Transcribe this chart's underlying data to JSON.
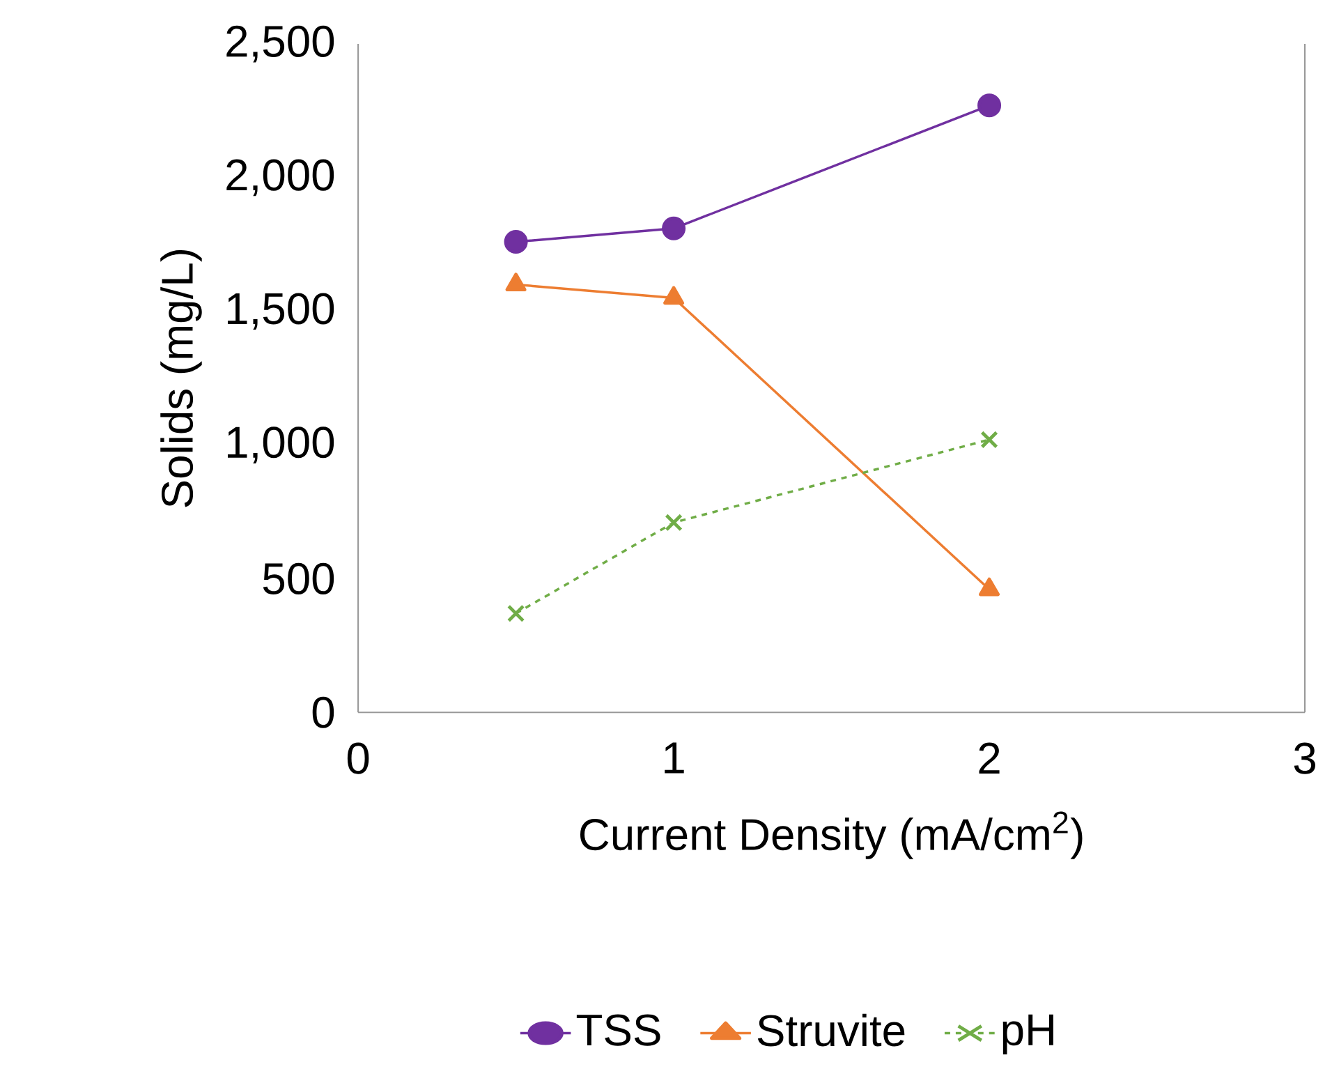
{
  "chart_data": {
    "type": "line",
    "xlabel": "Current Density (mA/cm$^{2}$)",
    "ylabel": "Solids (mg/L)",
    "x": [
      0.5,
      1,
      2
    ],
    "series": [
      {
        "name": "TSS",
        "color": "#7030a0",
        "values": [
          1760,
          1810,
          2270
        ],
        "marker": "circle",
        "line_style": "solid"
      },
      {
        "name": "Struvite",
        "color": "#ed7d31",
        "values": [
          1600,
          1550,
          460
        ],
        "marker": "triangle",
        "line_style": "solid"
      },
      {
        "name": "pH",
        "color": "#70ad47",
        "values": [
          370,
          710,
          1020
        ],
        "marker": "cross",
        "line_style": "dashed"
      }
    ],
    "xlim": [
      0,
      3
    ],
    "xticks": [
      0,
      1,
      2,
      3
    ],
    "ylim": [
      0,
      2500
    ],
    "yticks": [
      0,
      500,
      {
        "value": 1000,
        "label": "1,000"
      },
      {
        "value": 1500,
        "label": "1,500"
      },
      {
        "value": 2000,
        "label": "2,000"
      },
      {
        "value": 2500,
        "label": "2,500"
      }
    ],
    "grid": false,
    "legend": "bottom"
  }
}
